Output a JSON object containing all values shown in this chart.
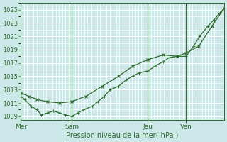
{
  "bg_color": "#cce8e8",
  "grid_color": "#ffffff",
  "line_color": "#2d6a2d",
  "title": "Pression niveau de la mer( hPa )",
  "ylim": [
    1008.5,
    1026.0
  ],
  "yticks": [
    1009,
    1011,
    1013,
    1015,
    1017,
    1019,
    1021,
    1023,
    1025
  ],
  "day_labels": [
    "Mer",
    "Sam",
    "Jeu",
    "Ven"
  ],
  "day_positions": [
    0.0,
    0.25,
    0.625,
    0.8125
  ],
  "xlim": [
    0.0,
    1.0
  ],
  "line1_x": [
    0.0,
    0.02,
    0.05,
    0.08,
    0.1,
    0.13,
    0.16,
    0.19,
    0.22,
    0.25,
    0.28,
    0.31,
    0.35,
    0.38,
    0.41,
    0.44,
    0.48,
    0.52,
    0.55,
    0.58,
    0.625,
    0.66,
    0.7,
    0.73,
    0.77,
    0.8125,
    0.85,
    0.88,
    0.92,
    0.95,
    0.98,
    1.0
  ],
  "line1_y": [
    1012.0,
    1011.5,
    1010.5,
    1010.0,
    1009.2,
    1009.5,
    1009.8,
    1009.5,
    1009.2,
    1009.0,
    1009.5,
    1010.0,
    1010.5,
    1011.2,
    1012.0,
    1013.0,
    1013.5,
    1014.5,
    1015.0,
    1015.5,
    1015.8,
    1016.5,
    1017.2,
    1017.8,
    1018.0,
    1018.0,
    1019.5,
    1021.0,
    1022.5,
    1023.5,
    1024.5,
    1025.2
  ],
  "line2_x": [
    0.0,
    0.04,
    0.08,
    0.13,
    0.19,
    0.25,
    0.32,
    0.4,
    0.48,
    0.55,
    0.625,
    0.7,
    0.77,
    0.8125,
    0.875,
    0.94,
    1.0
  ],
  "line2_y": [
    1012.5,
    1012.0,
    1011.5,
    1011.2,
    1011.0,
    1011.2,
    1012.0,
    1013.5,
    1015.0,
    1016.5,
    1017.5,
    1018.2,
    1018.0,
    1018.5,
    1019.5,
    1022.5,
    1025.2
  ],
  "line1_marker": "+",
  "line2_marker": "x",
  "marker_size": 3.5,
  "linewidth": 0.9
}
